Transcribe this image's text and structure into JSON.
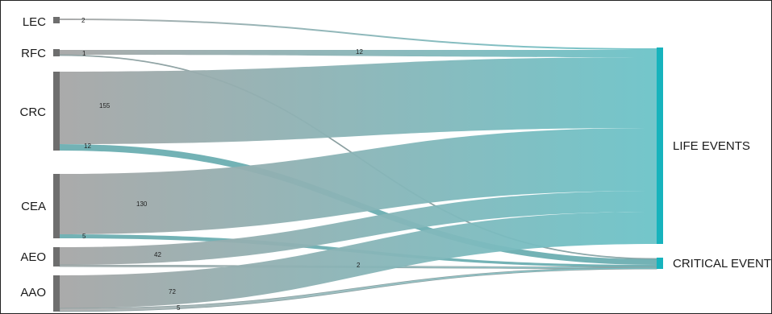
{
  "diagram": {
    "type": "sankey",
    "sources": [
      {
        "id": "LEC",
        "label": "LEC"
      },
      {
        "id": "RFC",
        "label": "RFC"
      },
      {
        "id": "CRC",
        "label": "CRC"
      },
      {
        "id": "CEA",
        "label": "CEA"
      },
      {
        "id": "AEO",
        "label": "AEO"
      },
      {
        "id": "AAO",
        "label": "AAO"
      }
    ],
    "targets": [
      {
        "id": "LIFE",
        "label": "LIFE EVENTS"
      },
      {
        "id": "CRIT",
        "label": "CRITICAL EVENTS"
      }
    ],
    "flows": [
      {
        "source": "LEC",
        "target": "LIFE",
        "value": 2,
        "label": "2"
      },
      {
        "source": "RFC",
        "target": "LIFE",
        "value": 12,
        "label": "12"
      },
      {
        "source": "RFC",
        "target": "CRIT",
        "value": 1,
        "label": "1"
      },
      {
        "source": "CRC",
        "target": "LIFE",
        "value": 155,
        "label": "155"
      },
      {
        "source": "CRC",
        "target": "CRIT",
        "value": 12,
        "label": "12"
      },
      {
        "source": "CEA",
        "target": "LIFE",
        "value": 130,
        "label": "130"
      },
      {
        "source": "CEA",
        "target": "CRIT",
        "value": 5,
        "label": "5"
      },
      {
        "source": "AEO",
        "target": "LIFE",
        "value": 42,
        "label": "42"
      },
      {
        "source": "AEO",
        "target": "CRIT",
        "value": 2,
        "label": "2"
      },
      {
        "source": "AAO",
        "target": "LIFE",
        "value": 72,
        "label": "72"
      },
      {
        "source": "AAO",
        "target": "CRIT",
        "value": 5,
        "label": "5"
      }
    ],
    "colors": {
      "source_node": "#6e6e6e",
      "target_node": "#17b3bd",
      "flow_start": "#a6a6a6",
      "flow_end": "#6cc3c8",
      "crit_flow": "#5aa5a8"
    }
  }
}
